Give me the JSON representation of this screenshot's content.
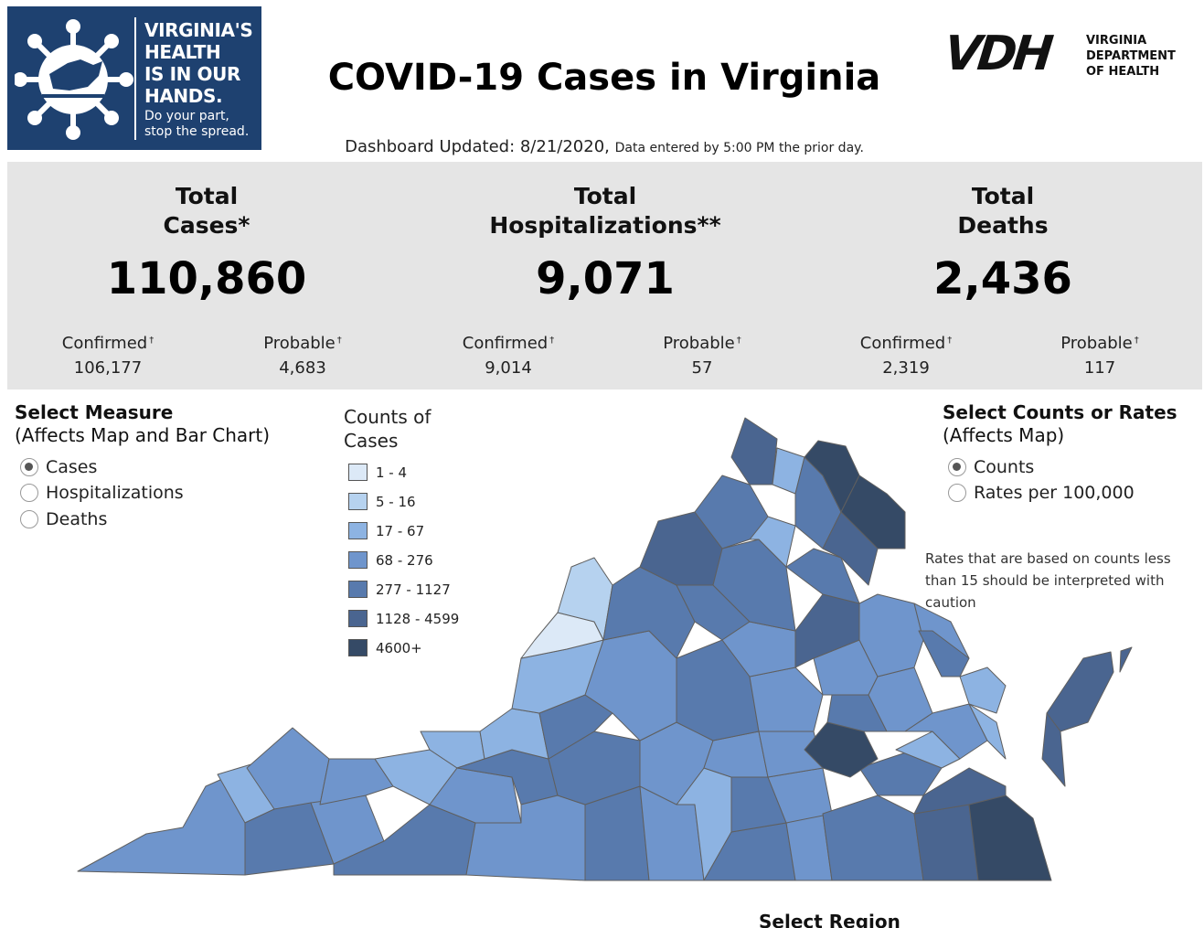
{
  "header": {
    "badge": {
      "slogan_lines": [
        "VIRGINIA'S",
        "HEALTH",
        "IS IN OUR",
        "HANDS."
      ],
      "tagline_lines": [
        "Do your part,",
        "stop the spread."
      ]
    },
    "title": "COVID-19 Cases in Virginia",
    "updated_main": "Dashboard Updated: 8/21/2020,",
    "updated_note": "Data entered by 5:00 PM the prior day.",
    "agency_logo": {
      "mark": "VDH",
      "name_lines": [
        "VIRGINIA",
        "DEPARTMENT",
        "OF HEALTH"
      ]
    }
  },
  "summary": {
    "cases": {
      "title_lines": [
        "Total",
        "Cases*"
      ],
      "total": "110,860",
      "confirmed_label": "Confirmed",
      "confirmed_value": "106,177",
      "probable_label": "Probable",
      "probable_value": "4,683"
    },
    "hospitalizations": {
      "title_lines": [
        "Total",
        "Hospitalizations**"
      ],
      "total": "9,071",
      "confirmed_label": "Confirmed",
      "confirmed_value": "9,014",
      "probable_label": "Probable",
      "probable_value": "57"
    },
    "deaths": {
      "title_lines": [
        "Total",
        "Deaths"
      ],
      "total": "2,436",
      "confirmed_label": "Confirmed",
      "confirmed_value": "2,319",
      "probable_label": "Probable",
      "probable_value": "117"
    },
    "dagger": "†"
  },
  "measure_selector": {
    "title": "Select Measure",
    "subtitle": "(Affects Map and Bar Chart)",
    "options": [
      {
        "label": "Cases",
        "selected": true
      },
      {
        "label": "Hospitalizations",
        "selected": false
      },
      {
        "label": "Deaths",
        "selected": false
      }
    ]
  },
  "legend": {
    "title_lines": [
      "Counts of",
      "Cases"
    ],
    "bins": [
      {
        "label": "1 - 4",
        "color": "#dce9f7"
      },
      {
        "label": "5 - 16",
        "color": "#b6d2ef"
      },
      {
        "label": "17 - 67",
        "color": "#8db3e2"
      },
      {
        "label": "68 - 276",
        "color": "#6f95cc"
      },
      {
        "label": "277 - 1127",
        "color": "#587aad"
      },
      {
        "label": "1128 - 4599",
        "color": "#4a6590"
      },
      {
        "label": "4600+",
        "color": "#354a66"
      }
    ]
  },
  "rate_selector": {
    "title": "Select Counts or Rates",
    "subtitle": "(Affects Map)",
    "options": [
      {
        "label": "Counts",
        "selected": true
      },
      {
        "label": "Rates per 100,000",
        "selected": false
      }
    ]
  },
  "caution_note": "Rates that are based on counts less than 15 should be interpreted with caution",
  "region_title": "Select Region"
}
